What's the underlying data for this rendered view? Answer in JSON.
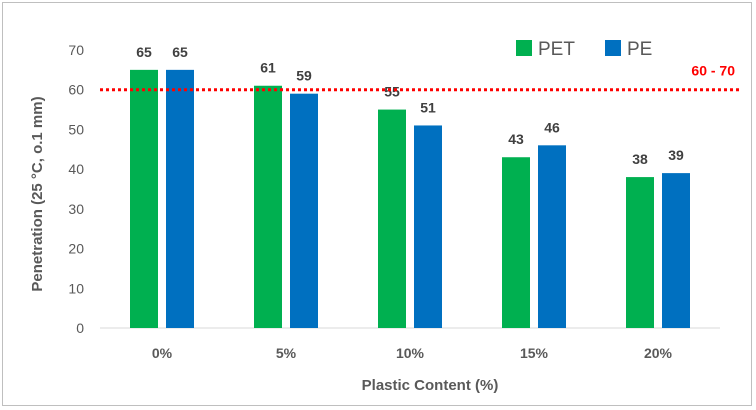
{
  "chart_data": {
    "type": "bar",
    "categories": [
      "0%",
      "5%",
      "10%",
      "15%",
      "20%"
    ],
    "series": [
      {
        "name": "PET",
        "color": "#00b050",
        "values": [
          65,
          61,
          55,
          43,
          38
        ]
      },
      {
        "name": "PE",
        "color": "#0070c0",
        "values": [
          65,
          59,
          51,
          46,
          39
        ]
      }
    ],
    "xlabel": "Plastic Content (%)",
    "ylabel": "Penetration (25 °C, o.1 mm)",
    "ylim": [
      0,
      70
    ],
    "yticks": [
      0,
      10,
      20,
      30,
      40,
      50,
      60,
      70
    ],
    "reference_line": {
      "value": 60,
      "label": "60 - 70",
      "color": "#ff0000",
      "style": "dotted"
    },
    "legend_position": "top-right",
    "grid": false
  }
}
